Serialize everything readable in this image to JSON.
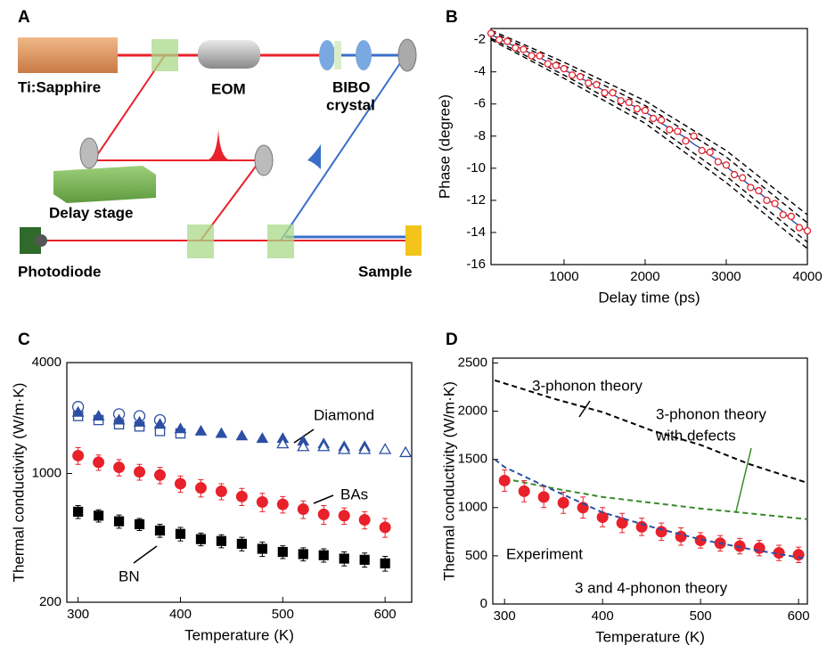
{
  "panel_a": {
    "label": "A",
    "laser": "Ti:Sapphire",
    "eom": "EOM",
    "bibo": [
      "BIBO",
      "crystal"
    ],
    "delay": "Delay stage",
    "photodiode": "Photodiode",
    "sample": "Sample"
  },
  "chart_data": [
    {
      "type": "line",
      "label": "B",
      "xlabel": "Delay time (ps)",
      "ylabel": "Phase (degree)",
      "xlim": [
        100,
        4000
      ],
      "ylim": [
        -16,
        -1.3
      ],
      "xticks": [
        1000,
        2000,
        3000,
        4000
      ],
      "yticks": [
        -2,
        -4,
        -6,
        -8,
        -10,
        -12,
        -14,
        -16
      ],
      "x": [
        100,
        200,
        300,
        400,
        500,
        600,
        700,
        800,
        900,
        1000,
        1100,
        1200,
        1300,
        1400,
        1500,
        1600,
        1700,
        1800,
        1900,
        2000,
        2100,
        2200,
        2300,
        2400,
        2500,
        2600,
        2700,
        2800,
        2900,
        3000,
        3100,
        3200,
        3300,
        3400,
        3500,
        3600,
        3700,
        3800,
        3900,
        4000
      ],
      "series": [
        {
          "style": "dashed",
          "color": "#000000",
          "x": [
            100,
            1000,
            2000,
            3000,
            4000
          ],
          "values": [
            -1.4,
            -3.4,
            -5.8,
            -8.9,
            -12.9
          ]
        },
        {
          "style": "dashed",
          "color": "#000000",
          "x": [
            100,
            1000,
            2000,
            3000,
            4000
          ],
          "values": [
            -1.5,
            -3.6,
            -6.1,
            -9.3,
            -13.4
          ]
        },
        {
          "style": "dashed",
          "color": "#000000",
          "x": [
            100,
            1000,
            2000,
            3000,
            4000
          ],
          "values": [
            -1.9,
            -4.2,
            -6.9,
            -10.5,
            -14.6
          ]
        },
        {
          "style": "dashed",
          "color": "#000000",
          "x": [
            100,
            1000,
            2000,
            3000,
            4000
          ],
          "values": [
            -2.0,
            -4.4,
            -7.2,
            -10.9,
            -15.0
          ]
        },
        {
          "style": "line",
          "color": "#2c4fa3",
          "values": [
            -1.7,
            -1.9,
            -2.2,
            -2.4,
            -2.6,
            -2.9,
            -3.1,
            -3.4,
            -3.6,
            -3.9,
            -4.1,
            -4.4,
            -4.6,
            -4.9,
            -5.2,
            -5.4,
            -5.7,
            -6.0,
            -6.2,
            -6.5,
            -6.8,
            -7.2,
            -7.5,
            -7.8,
            -8.1,
            -8.5,
            -8.8,
            -9.2,
            -9.5,
            -9.9,
            -10.3,
            -10.7,
            -11.1,
            -11.5,
            -11.9,
            -12.3,
            -12.7,
            -13.2,
            -13.6,
            -14.0
          ]
        },
        {
          "style": "markers",
          "marker": "circle-open",
          "color": "#e8212a",
          "values": [
            -1.6,
            -2.0,
            -2.1,
            -2.5,
            -2.6,
            -3.0,
            -3.0,
            -3.5,
            -3.6,
            -3.8,
            -4.2,
            -4.3,
            -4.7,
            -4.8,
            -5.3,
            -5.3,
            -5.8,
            -5.9,
            -6.3,
            -6.4,
            -6.9,
            -7.0,
            -7.6,
            -7.7,
            -8.3,
            -8.0,
            -8.9,
            -9.0,
            -9.6,
            -9.8,
            -10.4,
            -10.6,
            -11.2,
            -11.4,
            -12.0,
            -12.2,
            -12.9,
            -13.0,
            -13.7,
            -13.9
          ]
        }
      ]
    },
    {
      "type": "scatter",
      "label": "C",
      "xlabel": "Temperature (K)",
      "ylabel": "Thermal conductivity (W/m·K)",
      "yscale": "log",
      "xlim": [
        289,
        626
      ],
      "ylim": [
        200,
        4000
      ],
      "xticks": [
        300,
        400,
        500,
        600
      ],
      "yticks": [
        200,
        1000,
        4000
      ],
      "annotations": [
        {
          "text": "Diamond",
          "color": "#2c4fa3"
        },
        {
          "text": "BAs",
          "color": "#e8212a"
        },
        {
          "text": "BN",
          "color": "#000000"
        }
      ],
      "series": [
        {
          "style": "markers",
          "marker": "circle-open",
          "color": "#2c4fa3",
          "x": [
            300,
            340,
            360,
            380
          ],
          "values": [
            2300,
            2100,
            2050,
            1950
          ]
        },
        {
          "style": "markers",
          "marker": "square-open",
          "color": "#2c4fa3",
          "x": [
            300,
            320,
            340,
            360,
            380,
            400
          ],
          "values": [
            2050,
            1950,
            1850,
            1800,
            1700,
            1650
          ]
        },
        {
          "style": "markers",
          "marker": "triangle",
          "color": "#2c4fa3",
          "x": [
            300,
            320,
            340,
            360,
            380,
            400,
            420,
            440,
            460,
            480,
            500,
            520,
            540,
            560,
            580,
            600
          ],
          "values": [
            2150,
            2050,
            1950,
            1900,
            1850,
            1750,
            1700,
            1650,
            1600,
            1550,
            1550,
            1500,
            1450,
            1400,
            1400,
            1350
          ]
        },
        {
          "style": "markers",
          "marker": "triangle-open",
          "color": "#2c4fa3",
          "x": [
            500,
            520,
            540,
            560,
            580,
            600,
            620
          ],
          "values": [
            1450,
            1400,
            1400,
            1350,
            1350,
            1350,
            1300
          ]
        },
        {
          "style": "markers",
          "marker": "circle",
          "color": "#e8212a",
          "x": [
            300,
            320,
            340,
            360,
            380,
            400,
            420,
            440,
            460,
            480,
            500,
            520,
            540,
            560,
            580,
            600
          ],
          "values": [
            1250,
            1150,
            1080,
            1020,
            980,
            880,
            835,
            800,
            750,
            700,
            680,
            640,
            600,
            590,
            560,
            510
          ],
          "errors": [
            130,
            110,
            110,
            100,
            100,
            90,
            90,
            80,
            80,
            80,
            70,
            70,
            70,
            60,
            60,
            60
          ]
        },
        {
          "style": "markers",
          "marker": "square",
          "color": "#000000",
          "x": [
            300,
            320,
            340,
            360,
            380,
            400,
            420,
            440,
            460,
            480,
            500,
            520,
            540,
            560,
            580,
            600
          ],
          "values": [
            620,
            590,
            550,
            530,
            490,
            470,
            440,
            430,
            415,
            390,
            375,
            365,
            360,
            345,
            340,
            325
          ],
          "errors": [
            50,
            45,
            45,
            40,
            40,
            40,
            35,
            35,
            35,
            35,
            30,
            30,
            30,
            30,
            30,
            30
          ]
        }
      ]
    },
    {
      "type": "scatter",
      "label": "D",
      "xlabel": "Temperature (K)",
      "ylabel": "Thermal conductivity (W/m·K)",
      "xlim": [
        288,
        609
      ],
      "ylim": [
        0,
        2550
      ],
      "xticks": [
        300,
        400,
        500,
        600
      ],
      "yticks": [
        0,
        500,
        1000,
        1500,
        2000,
        2500
      ],
      "annotations": [
        {
          "text": "3-phonon theory",
          "color": "#000000"
        },
        {
          "text": "3-phonon theory",
          "color": "#3a8a2a"
        },
        {
          "text": "with defects",
          "color": "#3a8a2a"
        },
        {
          "text": "Experiment",
          "color": "#e8212a"
        },
        {
          "text": "3 and 4-phonon theory",
          "color": "#2c4fa3"
        }
      ],
      "series": [
        {
          "style": "dashed",
          "color": "#000000",
          "x": [
            290,
            350,
            400,
            450,
            500,
            550,
            608
          ],
          "values": [
            2320,
            2130,
            1990,
            1800,
            1650,
            1450,
            1260
          ]
        },
        {
          "style": "dashed",
          "color": "#3a8a2a",
          "x": [
            300,
            350,
            400,
            450,
            500,
            550,
            608
          ],
          "values": [
            1300,
            1200,
            1110,
            1050,
            990,
            940,
            880
          ]
        },
        {
          "style": "markers",
          "marker": "circle",
          "color": "#e8212a",
          "x": [
            300,
            320,
            340,
            360,
            380,
            400,
            420,
            440,
            460,
            480,
            500,
            520,
            540,
            560,
            580,
            600
          ],
          "values": [
            1280,
            1170,
            1110,
            1050,
            1000,
            900,
            840,
            800,
            750,
            700,
            660,
            630,
            600,
            580,
            530,
            510
          ],
          "errors": [
            110,
            110,
            110,
            110,
            110,
            100,
            100,
            90,
            90,
            90,
            80,
            80,
            80,
            80,
            80,
            80
          ]
        },
        {
          "style": "dashed",
          "color": "#2c4fa3",
          "x": [
            290,
            300,
            350,
            400,
            450,
            500,
            550,
            608
          ],
          "values": [
            1500,
            1420,
            1180,
            950,
            800,
            670,
            570,
            470
          ]
        }
      ]
    }
  ]
}
